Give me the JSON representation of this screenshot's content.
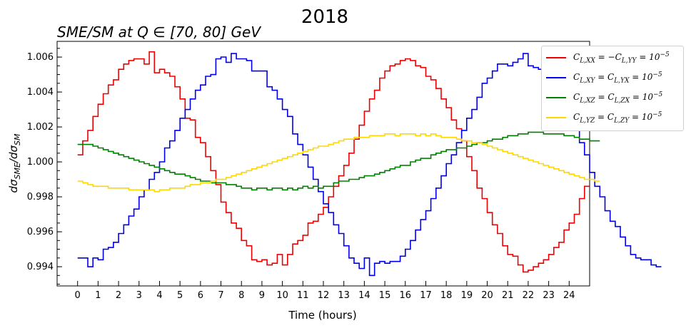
{
  "chart_data": {
    "type": "line",
    "title": "2018",
    "subtitle": "SME/SM at Q ∈ [70, 80] GeV",
    "xlabel": "Time (hours)",
    "ylabel": "dσSME/dσSM",
    "xlim": [
      -1,
      25
    ],
    "ylim": [
      0.9929,
      1.0069
    ],
    "x_ticks": [
      "0",
      "1",
      "2",
      "3",
      "4",
      "5",
      "6",
      "7",
      "8",
      "9",
      "10",
      "11",
      "12",
      "13",
      "14",
      "15",
      "16",
      "17",
      "18",
      "19",
      "20",
      "21",
      "22",
      "23",
      "24"
    ],
    "y_ticks": [
      "0.994",
      "0.996",
      "0.998",
      "1.000",
      "1.002",
      "1.004",
      "1.006"
    ],
    "grid": false,
    "legend_position": "top-right",
    "step": 0.25,
    "series": [
      {
        "name": "C_{L,XX} = −C_{L,YY} = 10^{−5}",
        "legend_main": "C",
        "legend_sub": "L,XX",
        "legend_rest": " = −C",
        "legend_sub2": "L,YY",
        "legend_tail": " = 10",
        "legend_sup": "−5",
        "color": "#ee0000",
        "values": [
          1.0004,
          1.0012,
          1.0018,
          1.0026,
          1.0033,
          1.0039,
          1.0044,
          1.0047,
          1.0053,
          1.0056,
          1.0058,
          1.0059,
          1.0059,
          1.0056,
          1.0063,
          1.0051,
          1.0053,
          1.0051,
          1.0049,
          1.0043,
          1.0036,
          1.0025,
          1.0024,
          1.0014,
          1.0011,
          1.0003,
          0.9995,
          0.9987,
          0.9977,
          0.9971,
          0.9965,
          0.9962,
          0.9955,
          0.9952,
          0.9944,
          0.9943,
          0.9944,
          0.9941,
          0.9942,
          0.9947,
          0.9941,
          0.9947,
          0.9953,
          0.9955,
          0.9958,
          0.9965,
          0.9966,
          0.997,
          0.9974,
          0.998,
          0.9986,
          0.9992,
          0.9998,
          1.0005,
          1.0013,
          1.0021,
          1.0029,
          1.0036,
          1.0041,
          1.0048,
          1.0052,
          1.0055,
          1.0056,
          1.0058,
          1.0059,
          1.0058,
          1.0055,
          1.0054,
          1.0049,
          1.0047,
          1.0042,
          1.0036,
          1.0031,
          1.0024,
          1.0019,
          1.0012,
          1.0003,
          0.9995,
          0.9985,
          0.9979,
          0.9971,
          0.9964,
          0.9959,
          0.9952,
          0.9947,
          0.9946,
          0.9941,
          0.9937,
          0.9938,
          0.994,
          0.9942,
          0.9944,
          0.9947,
          0.9951,
          0.9954,
          0.9961,
          0.9965,
          0.997,
          0.9979,
          0.9986
        ]
      },
      {
        "name": "C_{L,XY} = C_{L,YX} = 10^{−5}",
        "legend_main": "C",
        "legend_sub": "L,XY",
        "legend_rest": " = C",
        "legend_sub2": "L,YX",
        "legend_tail": " = 10",
        "legend_sup": "−5",
        "color": "#0000ee",
        "values": [
          0.9945,
          0.9945,
          0.994,
          0.9945,
          0.9944,
          0.995,
          0.9951,
          0.9954,
          0.9959,
          0.9964,
          0.9969,
          0.9973,
          0.998,
          0.9984,
          0.999,
          0.9994,
          1.0,
          1.0008,
          1.0012,
          1.0018,
          1.0025,
          1.003,
          1.0036,
          1.0041,
          1.0044,
          1.0049,
          1.005,
          1.0059,
          1.006,
          1.0057,
          1.0062,
          1.0059,
          1.0059,
          1.0058,
          1.0052,
          1.0052,
          1.0052,
          1.0043,
          1.0041,
          1.0036,
          1.003,
          1.0026,
          1.0016,
          1.001,
          1.0004,
          0.9997,
          0.999,
          0.9983,
          0.9976,
          0.9971,
          0.9964,
          0.9959,
          0.9952,
          0.9945,
          0.9942,
          0.9939,
          0.9945,
          0.9935,
          0.9942,
          0.9943,
          0.9942,
          0.9943,
          0.9943,
          0.9946,
          0.995,
          0.9955,
          0.9961,
          0.9967,
          0.9972,
          0.9979,
          0.9985,
          0.9992,
          0.9999,
          1.0004,
          1.0011,
          1.0018,
          1.0025,
          1.003,
          1.0037,
          1.0045,
          1.0048,
          1.0052,
          1.0056,
          1.0056,
          1.0055,
          1.0057,
          1.0059,
          1.0062,
          1.0055,
          1.0054,
          1.0053,
          1.005,
          1.0047,
          1.004,
          1.0038,
          1.003,
          1.0025,
          1.0019,
          1.0011,
          1.0004,
          0.9994,
          0.9986,
          0.998,
          0.9972,
          0.9966,
          0.9963,
          0.9957,
          0.9952,
          0.9947,
          0.9945,
          0.9944,
          0.9944,
          0.9941,
          0.994
        ]
      },
      {
        "name": "C_{L,XZ} = C_{L,ZX} = 10^{−5}",
        "legend_main": "C",
        "legend_sub": "L,XZ",
        "legend_rest": " = C",
        "legend_sub2": "L,ZX",
        "legend_tail": " = 10",
        "legend_sup": "−5",
        "color": "#008000",
        "values": [
          1.001,
          1.001,
          1.001,
          1.0009,
          1.0008,
          1.0007,
          1.0006,
          1.0005,
          1.0004,
          1.0003,
          1.0002,
          1.0001,
          1.0,
          0.9999,
          0.9998,
          0.9997,
          0.9996,
          0.9995,
          0.9994,
          0.9993,
          0.9993,
          0.9992,
          0.9991,
          0.999,
          0.9989,
          0.9989,
          0.9988,
          0.9988,
          0.9988,
          0.9987,
          0.9987,
          0.9986,
          0.9985,
          0.9985,
          0.9984,
          0.9985,
          0.9985,
          0.9984,
          0.9985,
          0.9985,
          0.9984,
          0.9985,
          0.9984,
          0.9985,
          0.9986,
          0.9985,
          0.9986,
          0.9985,
          0.9986,
          0.9986,
          0.9988,
          0.9989,
          0.9989,
          0.999,
          0.999,
          0.9991,
          0.9992,
          0.9992,
          0.9993,
          0.9994,
          0.9995,
          0.9996,
          0.9997,
          0.9998,
          0.9998,
          1.0,
          1.0001,
          1.0002,
          1.0002,
          1.0004,
          1.0005,
          1.0006,
          1.0007,
          1.0007,
          1.0008,
          1.0008,
          1.0009,
          1.001,
          1.0011,
          1.0011,
          1.0012,
          1.0013,
          1.0013,
          1.0014,
          1.0015,
          1.0015,
          1.0016,
          1.0016,
          1.0017,
          1.0017,
          1.0017,
          1.0016,
          1.0016,
          1.0016,
          1.0016,
          1.0015,
          1.0015,
          1.0014,
          1.0013,
          1.0013,
          1.0012,
          1.0012
        ]
      },
      {
        "name": "C_{L,YZ} = C_{L,ZY} = 10^{−5}",
        "legend_main": "C",
        "legend_sub": "L,YZ",
        "legend_rest": " = C",
        "legend_sub2": "L,ZY",
        "legend_tail": " = 10",
        "legend_sup": "−5",
        "color": "#ffd700",
        "values": [
          0.9989,
          0.9988,
          0.9987,
          0.9986,
          0.9986,
          0.9986,
          0.9985,
          0.9985,
          0.9985,
          0.9985,
          0.9984,
          0.9984,
          0.9984,
          0.9984,
          0.9984,
          0.9983,
          0.9984,
          0.9984,
          0.9985,
          0.9985,
          0.9985,
          0.9986,
          0.9987,
          0.9987,
          0.9988,
          0.9988,
          0.9989,
          0.999,
          0.999,
          0.9991,
          0.9992,
          0.9993,
          0.9994,
          0.9995,
          0.9996,
          0.9997,
          0.9998,
          0.9999,
          1.0,
          1.0001,
          1.0002,
          1.0003,
          1.0004,
          1.0005,
          1.0006,
          1.0007,
          1.0008,
          1.0009,
          1.0009,
          1.001,
          1.0011,
          1.0012,
          1.0013,
          1.0013,
          1.0014,
          1.0014,
          1.0014,
          1.0015,
          1.0015,
          1.0015,
          1.0016,
          1.0016,
          1.0015,
          1.0016,
          1.0016,
          1.0016,
          1.0015,
          1.0016,
          1.0015,
          1.0016,
          1.0015,
          1.0014,
          1.0014,
          1.0014,
          1.0013,
          1.0012,
          1.0012,
          1.0011,
          1.0011,
          1.001,
          1.0009,
          1.0008,
          1.0007,
          1.0006,
          1.0005,
          1.0004,
          1.0003,
          1.0002,
          1.0001,
          1.0,
          0.9999,
          0.9998,
          0.9997,
          0.9996,
          0.9995,
          0.9994,
          0.9993,
          0.9992,
          0.9991,
          0.999,
          0.999,
          0.9989
        ]
      }
    ]
  }
}
